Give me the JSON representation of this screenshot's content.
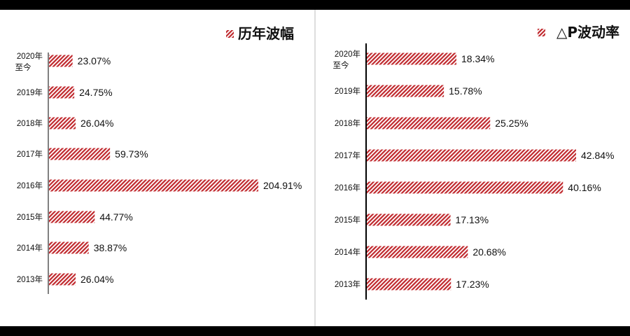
{
  "chart_data": [
    {
      "type": "bar",
      "orientation": "horizontal",
      "legend": "历年波幅",
      "legend_position": "top-right",
      "categories": [
        "2020年至今",
        "2019年",
        "2018年",
        "2017年",
        "2016年",
        "2015年",
        "2014年",
        "2013年"
      ],
      "values": [
        23.07,
        24.75,
        26.04,
        59.73,
        204.91,
        44.77,
        38.87,
        26.04
      ],
      "labels": [
        "23.07%",
        "24.75%",
        "26.04%",
        "59.73%",
        "204.91%",
        "44.77%",
        "38.87%",
        "26.04%"
      ],
      "grid": false,
      "color": "#c0282d",
      "fill": "diagonal-hatch"
    },
    {
      "type": "bar",
      "orientation": "horizontal",
      "legend": "△P波动率",
      "legend_position": "top-right",
      "categories": [
        "2020年至今",
        "2019年",
        "2018年",
        "2017年",
        "2016年",
        "2015年",
        "2014年",
        "2013年"
      ],
      "values": [
        18.34,
        15.78,
        25.25,
        42.84,
        40.16,
        17.13,
        20.68,
        17.23
      ],
      "labels": [
        "18.34%",
        "15.78%",
        "25.25%",
        "42.84%",
        "40.16%",
        "17.13%",
        "20.68%",
        "17.23%"
      ],
      "grid": false,
      "color": "#c0282d",
      "fill": "diagonal-hatch"
    }
  ]
}
